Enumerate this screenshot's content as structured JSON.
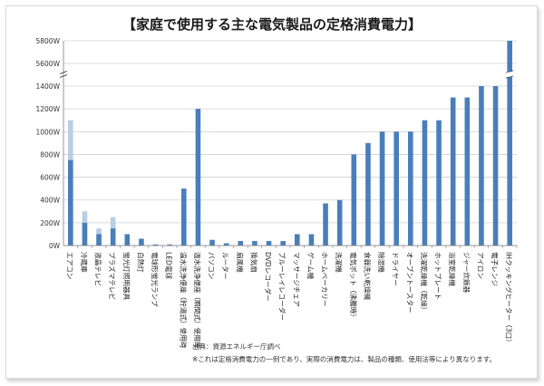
{
  "chart_data": {
    "type": "bar",
    "title": "【家庭で使用する主な電気製品の定格消費電力】",
    "ylabel": "",
    "xlabel": "",
    "y_ticks": [
      "0W",
      "200W",
      "400W",
      "600W",
      "800W",
      "1000W",
      "1200W",
      "1400W",
      "5600W",
      "5800W"
    ],
    "axis_break": true,
    "categories": [
      "エアコン",
      "冷蔵庫",
      "液晶テレビ",
      "プラズマテレビ",
      "蛍光灯照明器具",
      "白熱灯",
      "電球形蛍光ランプ",
      "LED電球",
      "温水洗浄便座（貯湯式）使用時",
      "温水洗浄便座（瞬間式）使用時",
      "パソコン",
      "ルーター",
      "扇風機",
      "換気扇",
      "DVDレコーダー",
      "ブルーレイレコーダー",
      "マッサージチェア",
      "ゲーム機",
      "ホームベーカリー",
      "洗濯機",
      "電気ポット（沸騰時）",
      "食器洗い乾燥機",
      "除湿機",
      "ドライヤー",
      "オーブントースター",
      "洗濯乾燥機（乾燥）",
      "ホットプレート",
      "浴室乾燥機",
      "ジャー炊飯器",
      "アイロン",
      "電子レンジ",
      "IHクッキングヒーター（3口）"
    ],
    "series": [
      {
        "values": [
          750,
          200,
          100,
          150,
          100,
          60,
          10,
          10,
          500,
          1200,
          50,
          20,
          40,
          40,
          40,
          40,
          100,
          100,
          370,
          400,
          800,
          900,
          1000,
          1000,
          1000,
          1100,
          1100,
          1300,
          1300,
          1400,
          1400,
          5800
        ],
        "color": "#4a7ebb"
      },
      {
        "values": [
          1100,
          300,
          150,
          250,
          null,
          null,
          null,
          null,
          null,
          null,
          null,
          null,
          null,
          null,
          null,
          null,
          null,
          null,
          null,
          null,
          null,
          null,
          null,
          null,
          null,
          null,
          null,
          null,
          null,
          null,
          null,
          null
        ],
        "color": "#b9cde5"
      }
    ],
    "grid": true,
    "notes": [
      "出典：資源エネルギー庁調べ",
      "※これは定格消費電力の一例であり、実際の消費電力は、製品の種類、使用法等により異なります。"
    ]
  }
}
